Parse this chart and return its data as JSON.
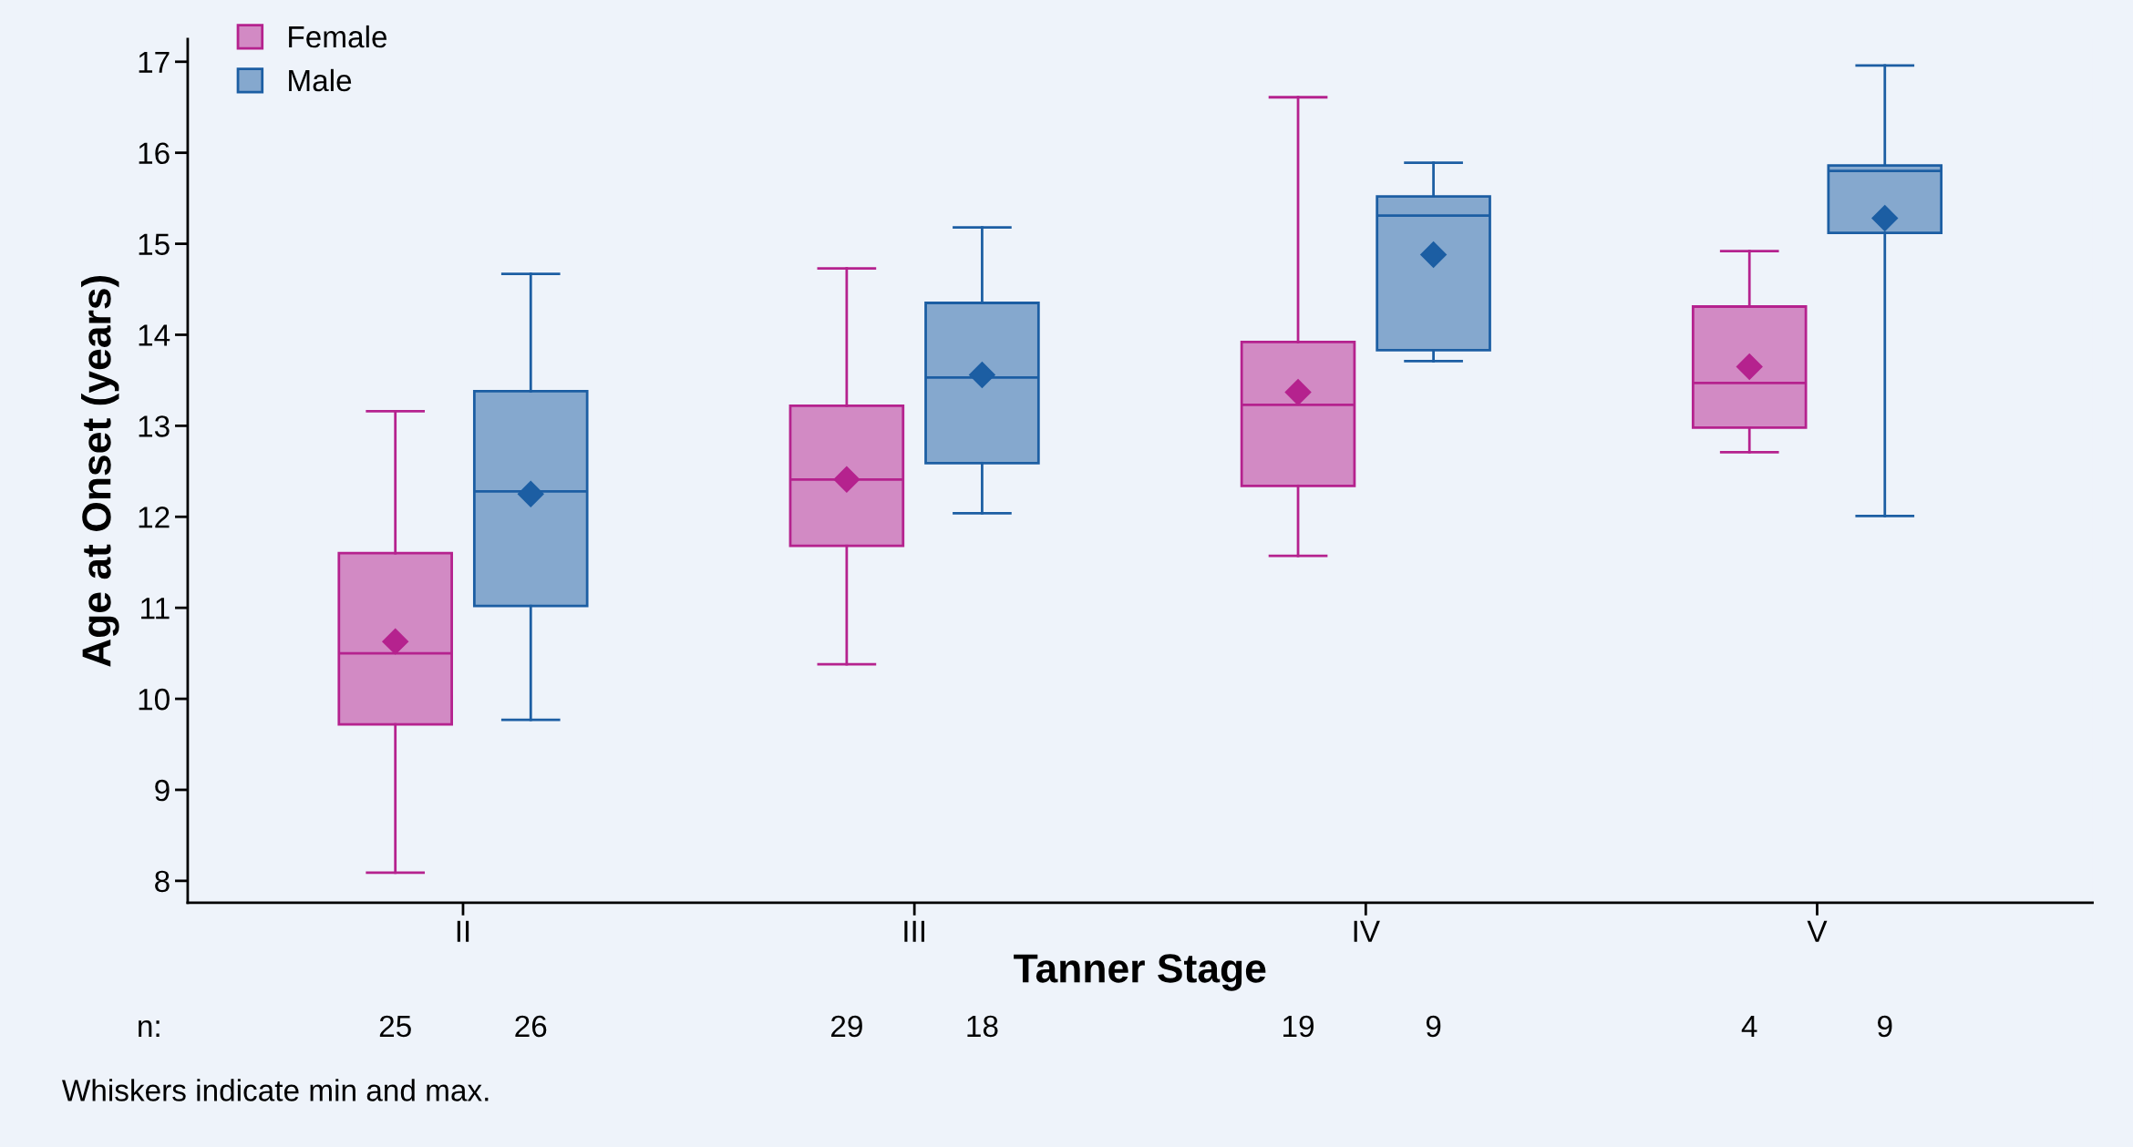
{
  "chart_data": {
    "type": "box",
    "xlabel": "Tanner Stage",
    "ylabel": "Age at Onset (years)",
    "categories": [
      "II",
      "III",
      "IV",
      "V"
    ],
    "series": [
      {
        "name": "Female",
        "color": "#b5228e",
        "boxes": [
          {
            "low": 8.09,
            "q1": 9.72,
            "median": 10.5,
            "q3": 11.6,
            "high": 13.16,
            "mean": 10.63
          },
          {
            "low": 10.38,
            "q1": 11.68,
            "median": 12.41,
            "q3": 13.22,
            "high": 14.73,
            "mean": 12.41
          },
          {
            "low": 11.57,
            "q1": 12.34,
            "median": 13.23,
            "q3": 13.92,
            "high": 16.61,
            "mean": 13.37
          },
          {
            "low": 12.71,
            "q1": 12.98,
            "median": 13.47,
            "q3": 14.31,
            "high": 14.92,
            "mean": 13.65
          }
        ]
      },
      {
        "name": "Male",
        "color": "#1c5ea3",
        "boxes": [
          {
            "low": 9.77,
            "q1": 11.02,
            "median": 12.28,
            "q3": 13.38,
            "high": 14.67,
            "mean": 12.25
          },
          {
            "low": 12.04,
            "q1": 12.59,
            "median": 13.53,
            "q3": 14.35,
            "high": 15.18,
            "mean": 13.56
          },
          {
            "low": 13.71,
            "q1": 13.83,
            "median": 15.31,
            "q3": 15.52,
            "high": 15.89,
            "mean": 14.88
          },
          {
            "low": 12.01,
            "q1": 15.12,
            "median": 15.8,
            "q3": 15.86,
            "high": 16.96,
            "mean": 15.28
          }
        ]
      }
    ],
    "ylim": [
      7.76,
      17.25
    ],
    "yticks": [
      8,
      9,
      10,
      11,
      12,
      13,
      14,
      15,
      16,
      17
    ],
    "grid": false,
    "legend": "top left",
    "marker": "diamond",
    "annotations": [
      "n:",
      "25",
      "26",
      "29",
      "18",
      "19",
      "9",
      "4",
      "9",
      "Whiskers indicate min and max."
    ]
  }
}
